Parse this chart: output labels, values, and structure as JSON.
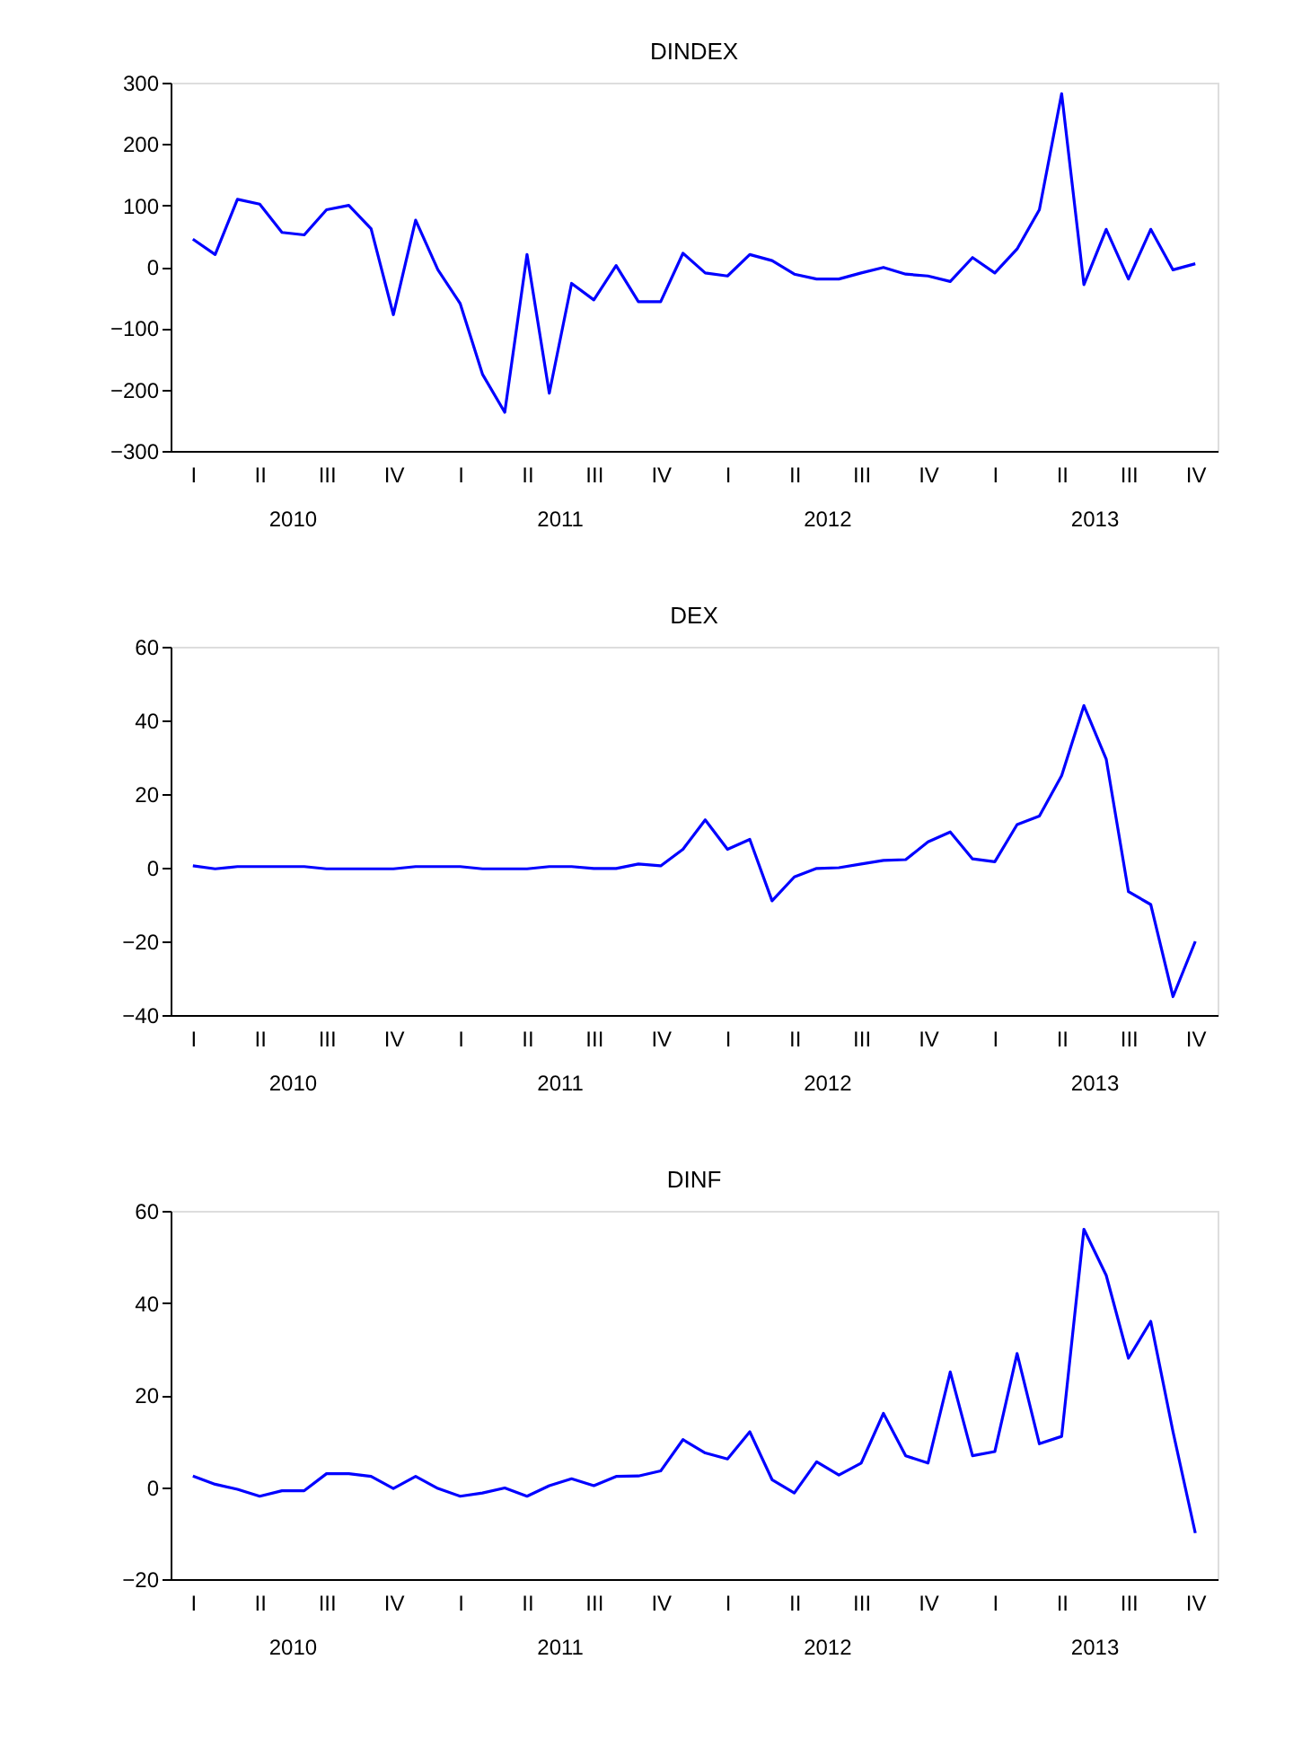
{
  "chart_data": [
    {
      "type": "line",
      "title": "DINDEX",
      "categories": [
        "I",
        null,
        null,
        "II",
        null,
        null,
        "III",
        null,
        null,
        "IV",
        null,
        null,
        "I",
        null,
        null,
        "II",
        null,
        null,
        "III",
        null,
        null,
        "IV",
        null,
        null,
        "I",
        null,
        null,
        "II",
        null,
        null,
        "III",
        null,
        null,
        "IV",
        null,
        null,
        "I",
        null,
        null,
        "II",
        null,
        null,
        "III",
        null,
        null,
        "IV"
      ],
      "series": [
        {
          "color": "#0000ff",
          "values": [
            45,
            20,
            110,
            102,
            56,
            52,
            93,
            100,
            62,
            -78,
            76,
            -5,
            -60,
            -175,
            -237,
            20,
            -206,
            -27,
            -54,
            2,
            -57,
            -57,
            22,
            -10,
            -15,
            20,
            10,
            -12,
            -20,
            -20,
            -10,
            -1,
            -12,
            -15,
            -24,
            15,
            -10,
            29,
            93,
            282,
            -29,
            61,
            -20,
            61,
            -5,
            5
          ]
        }
      ],
      "annotations": [
        "2010",
        "2011",
        "2012",
        "2013"
      ],
      "ylim": [
        -300,
        300
      ],
      "yticks": [
        -300,
        -200,
        -100,
        0,
        100,
        200,
        300
      ],
      "grid": false,
      "legend": false,
      "line_style": "solid"
    },
    {
      "type": "line",
      "title": "DEX",
      "categories": [
        "I",
        null,
        null,
        "II",
        null,
        null,
        "III",
        null,
        null,
        "IV",
        null,
        null,
        "I",
        null,
        null,
        "II",
        null,
        null,
        "III",
        null,
        null,
        "IV",
        null,
        null,
        "I",
        null,
        null,
        "II",
        null,
        null,
        "III",
        null,
        null,
        "IV",
        null,
        null,
        "I",
        null,
        null,
        "II",
        null,
        null,
        "III",
        null,
        null,
        "IV"
      ],
      "series": [
        {
          "color": "#0000ff",
          "values": [
            0.5,
            -0.3,
            0.3,
            0.3,
            0.3,
            0.3,
            -0.3,
            -0.3,
            -0.3,
            -0.3,
            0.3,
            0.3,
            0.3,
            -0.3,
            -0.3,
            -0.3,
            0.3,
            0.3,
            -0.2,
            -0.2,
            1,
            0.5,
            5,
            13,
            5,
            7.7,
            -9,
            -2.5,
            -0.2,
            0,
            1,
            2,
            2.2,
            7,
            9.7,
            2.4,
            1.6,
            11.7,
            14,
            25,
            44,
            29.5,
            -6.5,
            -10,
            -35,
            -20
          ]
        }
      ],
      "annotations": [
        "2010",
        "2011",
        "2012",
        "2013"
      ],
      "ylim": [
        -40,
        60
      ],
      "yticks": [
        -40,
        -20,
        0,
        20,
        40,
        60
      ],
      "grid": false,
      "legend": false,
      "line_style": "solid"
    },
    {
      "type": "line",
      "title": "DINF",
      "categories": [
        "I",
        null,
        null,
        "II",
        null,
        null,
        "III",
        null,
        null,
        "IV",
        null,
        null,
        "I",
        null,
        null,
        "II",
        null,
        null,
        "III",
        null,
        null,
        "IV",
        null,
        null,
        "I",
        null,
        null,
        "II",
        null,
        null,
        "III",
        null,
        null,
        "IV",
        null,
        null,
        "I",
        null,
        null,
        "II",
        null,
        null,
        "III",
        null,
        null,
        "IV"
      ],
      "series": [
        {
          "color": "#0000ff",
          "values": [
            2.4,
            0.6,
            -0.5,
            -2,
            -0.8,
            -0.8,
            2.9,
            2.9,
            2.3,
            -0.3,
            2.3,
            -0.3,
            -2,
            -1.3,
            -0.2,
            -2,
            0.3,
            1.8,
            0.3,
            2.3,
            2.4,
            3.5,
            10.3,
            7.4,
            6.1,
            12,
            1.6,
            -1.3,
            5.5,
            2.6,
            5.2,
            16,
            6.8,
            5.2,
            25,
            6.8,
            7.7,
            29,
            9.4,
            11,
            56,
            46,
            28,
            36,
            12,
            -10
          ]
        }
      ],
      "annotations": [
        "2010",
        "2011",
        "2012",
        "2013"
      ],
      "ylim": [
        -20,
        60
      ],
      "yticks": [
        -20,
        0,
        20,
        40,
        60
      ],
      "grid": false,
      "legend": false,
      "line_style": "solid"
    }
  ]
}
